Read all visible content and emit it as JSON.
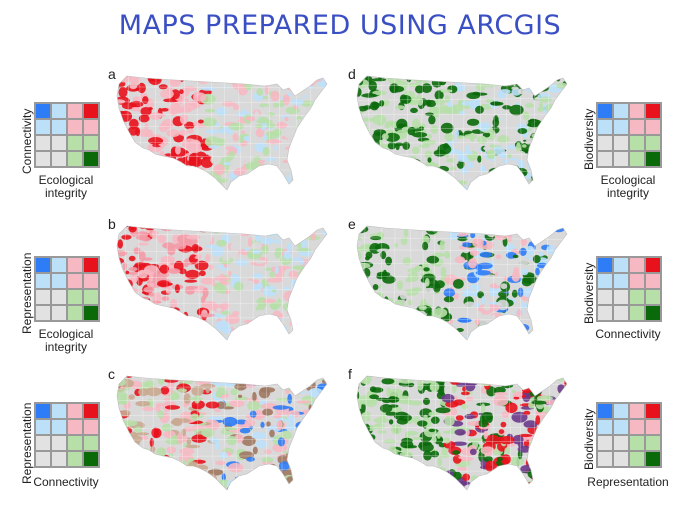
{
  "title": "MAPS PREPARED USING ARCGIS",
  "palette": {
    "a": [
      "#2e7cf6",
      "#bde0f9",
      "#f6b8c2",
      "#e8121c",
      "#bde0f9",
      "#bde0f9",
      "#f6b8c2",
      "#f6b8c2",
      "#e2e2e2",
      "#e2e2e2",
      "#b7dfa8",
      "#b7dfa8",
      "#e2e2e2",
      "#e2e2e2",
      "#b7dfa8",
      "#0a6a0a"
    ],
    "map_base": "#d9d9d9",
    "map_border": "#ffffff"
  },
  "panels": [
    {
      "letter": "a",
      "scheme": "red",
      "legend": {
        "y_label": "Connectivity",
        "x_label": [
          "Ecological",
          "integrity"
        ]
      }
    },
    {
      "letter": "b",
      "scheme": "redblue",
      "legend": {
        "y_label": "Representation",
        "x_label": [
          "Ecological",
          "integrity"
        ]
      }
    },
    {
      "letter": "c",
      "scheme": "redbluebrown",
      "legend": {
        "y_label": "Representation",
        "x_label": [
          "Connectivity"
        ]
      }
    },
    {
      "letter": "d",
      "scheme": "green",
      "legend": {
        "y_label": "Biodiversity",
        "x_label": [
          "Ecological",
          "integrity"
        ]
      }
    },
    {
      "letter": "e",
      "scheme": "greenblue",
      "legend": {
        "y_label": "Biodiversity",
        "x_label": [
          "Connectivity"
        ]
      }
    },
    {
      "letter": "f",
      "scheme": "greenpurple",
      "legend": {
        "y_label": "Biodiversity",
        "x_label": [
          "Representation"
        ]
      }
    }
  ]
}
